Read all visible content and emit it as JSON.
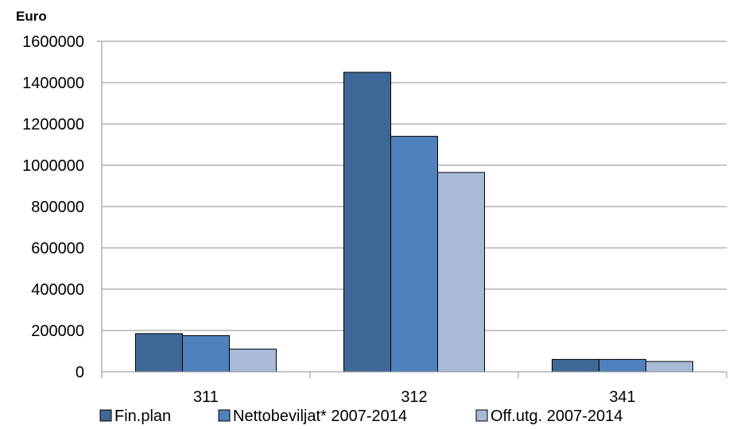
{
  "chart_data": {
    "type": "bar",
    "ylabel": "Euro",
    "categories": [
      "311",
      "312",
      "341"
    ],
    "series": [
      {
        "name": "Fin.plan",
        "color": "#3F6797",
        "values": [
          185000,
          1450000,
          60000
        ]
      },
      {
        "name": "Nettobeviljat* 2007-2014",
        "color": "#4F81BD",
        "values": [
          175000,
          1140000,
          60000
        ]
      },
      {
        "name": "Off.utg. 2007-2014",
        "color": "#A9B9D8",
        "values": [
          110000,
          965000,
          50000
        ]
      }
    ],
    "ylim": [
      0,
      1600000
    ],
    "yticks": [
      "0",
      "200000",
      "400000",
      "600000",
      "800000",
      "1000000",
      "1200000",
      "1400000",
      "1600000"
    ],
    "grid": true,
    "legend_position": "bottom"
  }
}
